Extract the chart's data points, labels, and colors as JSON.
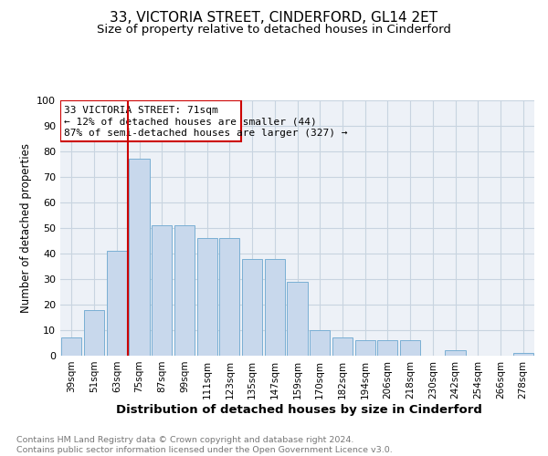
{
  "title": "33, VICTORIA STREET, CINDERFORD, GL14 2ET",
  "subtitle": "Size of property relative to detached houses in Cinderford",
  "xlabel": "Distribution of detached houses by size in Cinderford",
  "ylabel": "Number of detached properties",
  "categories": [
    "39sqm",
    "51sqm",
    "63sqm",
    "75sqm",
    "87sqm",
    "99sqm",
    "111sqm",
    "123sqm",
    "135sqm",
    "147sqm",
    "159sqm",
    "170sqm",
    "182sqm",
    "194sqm",
    "206sqm",
    "218sqm",
    "230sqm",
    "242sqm",
    "254sqm",
    "266sqm",
    "278sqm"
  ],
  "values": [
    7,
    18,
    41,
    77,
    51,
    51,
    46,
    46,
    38,
    38,
    29,
    10,
    7,
    6,
    6,
    6,
    0,
    2,
    0,
    0,
    1
  ],
  "bar_color": "#c8d8ec",
  "bar_edge_color": "#7aafd4",
  "property_line_label": "33 VICTORIA STREET: 71sqm",
  "annotation_line1": "← 12% of detached houses are smaller (44)",
  "annotation_line2": "87% of semi-detached houses are larger (327) →",
  "annotation_box_color": "#cc0000",
  "vline_color": "#cc0000",
  "grid_color": "#c8d4e0",
  "background_color": "#edf1f7",
  "footer_text": "Contains HM Land Registry data © Crown copyright and database right 2024.\nContains public sector information licensed under the Open Government Licence v3.0.",
  "ylim": [
    0,
    100
  ],
  "title_fontsize": 11,
  "subtitle_fontsize": 9.5,
  "xlabel_fontsize": 9.5,
  "ylabel_fontsize": 8.5
}
